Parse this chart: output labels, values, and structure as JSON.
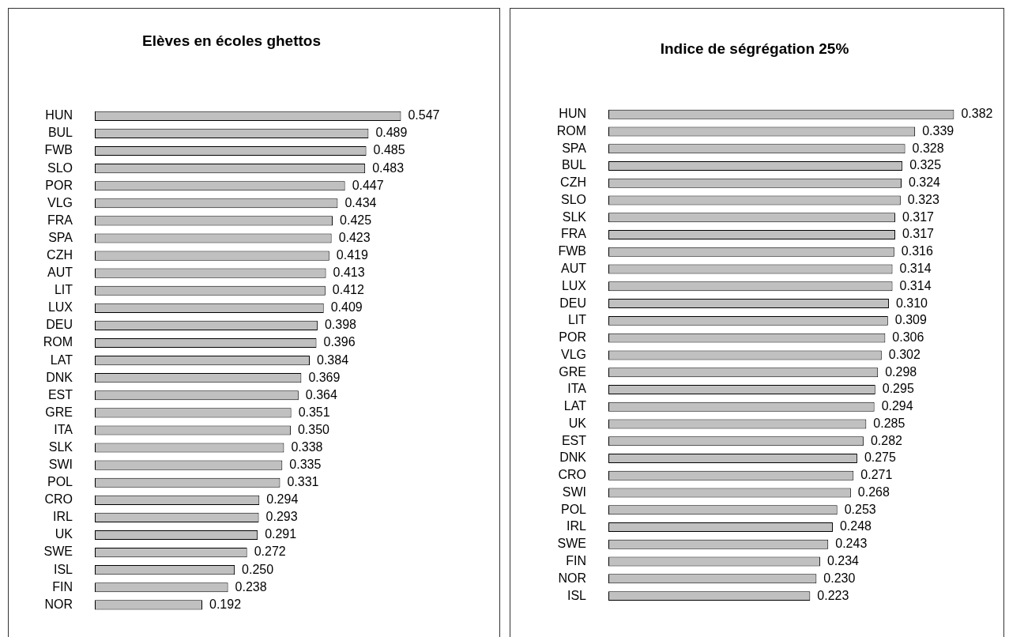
{
  "chart_data": [
    {
      "type": "bar",
      "orientation": "horizontal",
      "title": "Elèves en écoles ghettos",
      "color": "#c0c0c0",
      "categories": [
        "HUN",
        "BUL",
        "FWB",
        "SLO",
        "POR",
        "VLG",
        "FRA",
        "SPA",
        "CZH",
        "AUT",
        "LIT",
        "LUX",
        "DEU",
        "ROM",
        "LAT",
        "DNK",
        "EST",
        "GRE",
        "ITA",
        "SLK",
        "SWI",
        "POL",
        "CRO",
        "IRL",
        "UK",
        "SWE",
        "ISL",
        "FIN",
        "NOR"
      ],
      "values": [
        0.547,
        0.489,
        0.485,
        0.483,
        0.447,
        0.434,
        0.425,
        0.423,
        0.419,
        0.413,
        0.412,
        0.409,
        0.398,
        0.396,
        0.384,
        0.369,
        0.364,
        0.351,
        0.35,
        0.338,
        0.335,
        0.331,
        0.294,
        0.293,
        0.291,
        0.272,
        0.25,
        0.238,
        0.192
      ],
      "value_labels": [
        "0.547",
        "0.489",
        "0.485",
        "0.483",
        "0.447",
        "0.434",
        "0.425",
        "0.423",
        "0.419",
        "0.413",
        "0.412",
        "0.409",
        "0.398",
        "0.396",
        "0.384",
        "0.369",
        "0.364",
        "0.351",
        "0.350",
        "0.338",
        "0.335",
        "0.331",
        "0.294",
        "0.293",
        "0.291",
        "0.272",
        "0.250",
        "0.238",
        "0.192"
      ]
    },
    {
      "type": "bar",
      "orientation": "horizontal",
      "title": "Indice de ségrégation 25%",
      "color": "#c0c0c0",
      "categories": [
        "HUN",
        "ROM",
        "SPA",
        "BUL",
        "CZH",
        "SLO",
        "SLK",
        "FRA",
        "FWB",
        "AUT",
        "LUX",
        "DEU",
        "LIT",
        "POR",
        "VLG",
        "GRE",
        "ITA",
        "LAT",
        "UK",
        "EST",
        "DNK",
        "CRO",
        "SWI",
        "POL",
        "IRL",
        "SWE",
        "FIN",
        "NOR",
        "ISL"
      ],
      "values": [
        0.382,
        0.339,
        0.328,
        0.325,
        0.324,
        0.323,
        0.317,
        0.317,
        0.316,
        0.314,
        0.314,
        0.31,
        0.309,
        0.306,
        0.302,
        0.298,
        0.295,
        0.294,
        0.285,
        0.282,
        0.275,
        0.271,
        0.268,
        0.253,
        0.248,
        0.243,
        0.234,
        0.23,
        0.223
      ],
      "value_labels": [
        "0.382",
        "0.339",
        "0.328",
        "0.325",
        "0.324",
        "0.323",
        "0.317",
        "0.317",
        "0.316",
        "0.314",
        "0.314",
        "0.310",
        "0.309",
        "0.306",
        "0.302",
        "0.298",
        "0.295",
        "0.294",
        "0.285",
        "0.282",
        "0.275",
        "0.271",
        "0.268",
        "0.253",
        "0.248",
        "0.243",
        "0.234",
        "0.230",
        "0.223"
      ]
    }
  ]
}
